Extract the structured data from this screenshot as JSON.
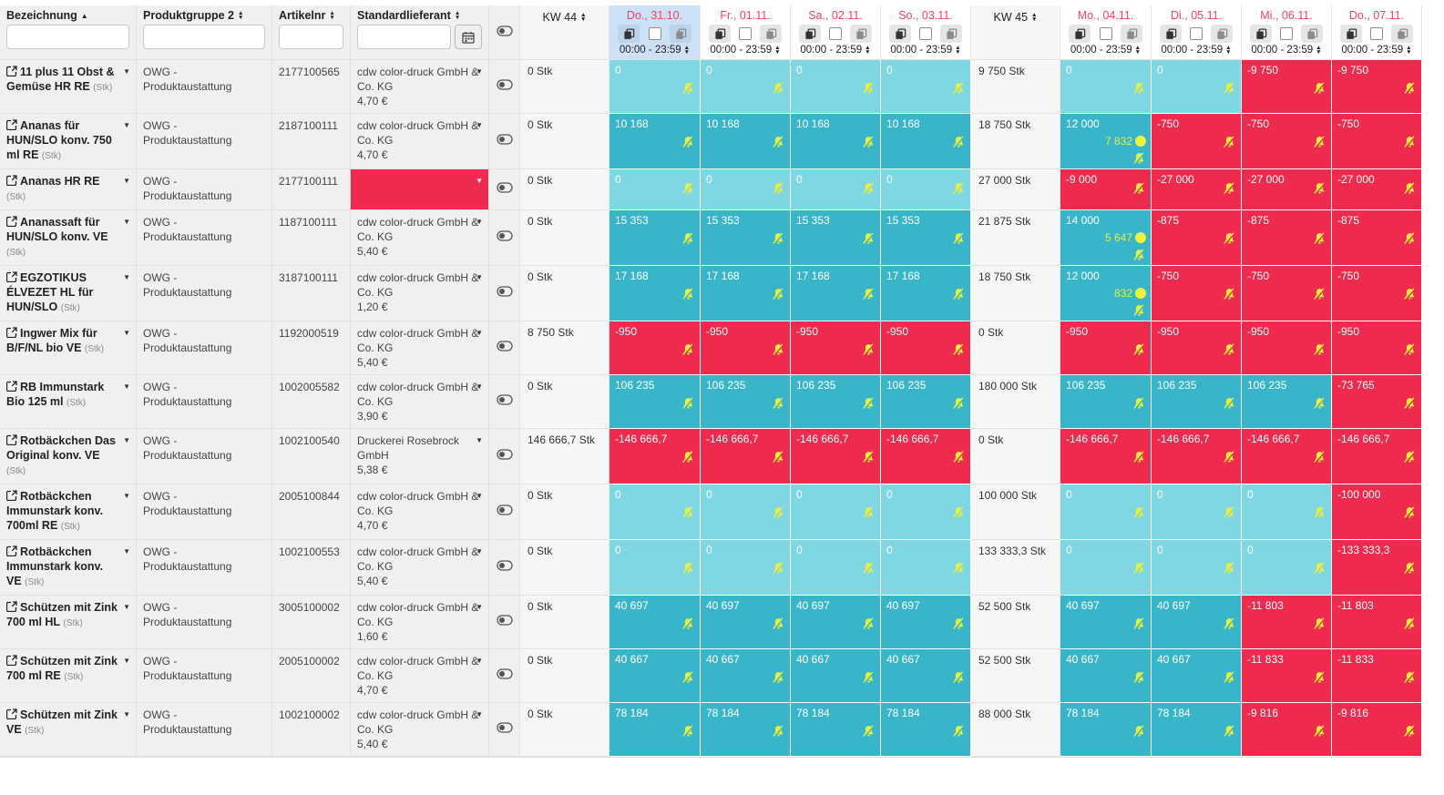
{
  "header": {
    "filters": [
      {
        "label": "Bezeichnung",
        "sort": "asc",
        "filter_value": "",
        "has_calendar": false
      },
      {
        "label": "Produktgruppe 2",
        "sort": "both",
        "filter_value": "",
        "has_calendar": false
      },
      {
        "label": "Artikelnr",
        "sort": "both",
        "filter_value": "",
        "has_calendar": false
      },
      {
        "label": "Standardlieferant",
        "sort": "both",
        "filter_value": "",
        "has_calendar": true
      }
    ],
    "weeks": [
      {
        "label": "KW 44"
      },
      {
        "label": "KW 45"
      }
    ],
    "days": [
      {
        "label": "Do., 31.10.",
        "time": "00:00 - 23:59",
        "highlighted": true
      },
      {
        "label": "Fr., 01.11.",
        "time": "00:00 - 23:59",
        "highlighted": false
      },
      {
        "label": "Sa., 02.11.",
        "time": "00:00 - 23:59",
        "highlighted": false
      },
      {
        "label": "So., 03.11.",
        "time": "00:00 - 23:59",
        "highlighted": false
      },
      {
        "label": "Mo., 04.11.",
        "time": "00:00 - 23:59",
        "highlighted": false
      },
      {
        "label": "Di., 05.11.",
        "time": "00:00 - 23:59",
        "highlighted": false
      },
      {
        "label": "Mi., 06.11.",
        "time": "00:00 - 23:59",
        "highlighted": false
      },
      {
        "label": "Do., 07.11.",
        "time": "00:00 - 23:59",
        "highlighted": false
      }
    ]
  },
  "rows": [
    {
      "name": "11 plus 11 Obst & Gemüse HR RE",
      "unit": "(Stk)",
      "group": "OWG - Produktaustattung",
      "article": "2177100565",
      "supplier": "cdw color-druck GmbH & Co. KG",
      "price": "4,70 €",
      "supplier_missing": false,
      "week1_stock": "0 Stk",
      "week2_stock": "9 750 Stk",
      "day_values": [
        {
          "value": "0",
          "state": "zero"
        },
        {
          "value": "0",
          "state": "zero"
        },
        {
          "value": "0",
          "state": "zero"
        },
        {
          "value": "0",
          "state": "zero"
        },
        {
          "value": "0",
          "state": "zero"
        },
        {
          "value": "0",
          "state": "zero"
        },
        {
          "value": "-9 750",
          "state": "neg"
        },
        {
          "value": "-9 750",
          "state": "neg"
        }
      ]
    },
    {
      "name": "Ananas für HUN/SLO konv. 750 ml RE",
      "unit": "(Stk)",
      "group": "OWG - Produktaustattung",
      "article": "2187100111",
      "supplier": "cdw color-druck GmbH & Co. KG",
      "price": "4,70 €",
      "supplier_missing": false,
      "week1_stock": "0 Stk",
      "week2_stock": "18 750 Stk",
      "day_values": [
        {
          "value": "10 168",
          "state": "pos"
        },
        {
          "value": "10 168",
          "state": "pos"
        },
        {
          "value": "10 168",
          "state": "pos"
        },
        {
          "value": "10 168",
          "state": "pos"
        },
        {
          "value": "12 000",
          "state": "pos",
          "extra": "7 832"
        },
        {
          "value": "-750",
          "state": "neg"
        },
        {
          "value": "-750",
          "state": "neg"
        },
        {
          "value": "-750",
          "state": "neg"
        }
      ]
    },
    {
      "name": "Ananas HR RE",
      "unit": "(Stk)",
      "compact": true,
      "group": "OWG - Produktaustattung",
      "article": "2177100111",
      "supplier": "",
      "price": "",
      "supplier_missing": true,
      "week1_stock": "0 Stk",
      "week2_stock": "27 000 Stk",
      "day_values": [
        {
          "value": "0",
          "state": "zero"
        },
        {
          "value": "0",
          "state": "zero"
        },
        {
          "value": "0",
          "state": "zero"
        },
        {
          "value": "0",
          "state": "zero"
        },
        {
          "value": "-9 000",
          "state": "neg"
        },
        {
          "value": "-27 000",
          "state": "neg"
        },
        {
          "value": "-27 000",
          "state": "neg"
        },
        {
          "value": "-27 000",
          "state": "neg"
        }
      ]
    },
    {
      "name": "Ananassaft für HUN/SLO konv. VE",
      "unit": "(Stk)",
      "group": "OWG - Produktaustattung",
      "article": "1187100111",
      "supplier": "cdw color-druck GmbH & Co. KG",
      "price": "5,40 €",
      "supplier_missing": false,
      "week1_stock": "0 Stk",
      "week2_stock": "21 875 Stk",
      "day_values": [
        {
          "value": "15 353",
          "state": "pos"
        },
        {
          "value": "15 353",
          "state": "pos"
        },
        {
          "value": "15 353",
          "state": "pos"
        },
        {
          "value": "15 353",
          "state": "pos"
        },
        {
          "value": "14 000",
          "state": "pos",
          "extra": "5 647"
        },
        {
          "value": "-875",
          "state": "neg"
        },
        {
          "value": "-875",
          "state": "neg"
        },
        {
          "value": "-875",
          "state": "neg"
        }
      ]
    },
    {
      "name": "EGZOTIKUS ÉLVEZET HL für HUN/SLO",
      "unit": "(Stk)",
      "group": "OWG - Produktaustattung",
      "article": "3187100111",
      "supplier": "cdw color-druck GmbH & Co. KG",
      "price": "1,20 €",
      "supplier_missing": false,
      "week1_stock": "0 Stk",
      "week2_stock": "18 750 Stk",
      "day_values": [
        {
          "value": "17 168",
          "state": "pos"
        },
        {
          "value": "17 168",
          "state": "pos"
        },
        {
          "value": "17 168",
          "state": "pos"
        },
        {
          "value": "17 168",
          "state": "pos"
        },
        {
          "value": "12 000",
          "state": "pos",
          "extra": "832"
        },
        {
          "value": "-750",
          "state": "neg"
        },
        {
          "value": "-750",
          "state": "neg"
        },
        {
          "value": "-750",
          "state": "neg"
        }
      ]
    },
    {
      "name": "Ingwer Mix für B/F/NL bio VE",
      "unit": "(Stk)",
      "group": "OWG - Produktaustattung",
      "article": "1192000519",
      "supplier": "cdw color-druck GmbH & Co. KG",
      "price": "5,40 €",
      "supplier_missing": false,
      "week1_stock": "8 750 Stk",
      "week2_stock": "0 Stk",
      "day_values": [
        {
          "value": "-950",
          "state": "neg"
        },
        {
          "value": "-950",
          "state": "neg"
        },
        {
          "value": "-950",
          "state": "neg"
        },
        {
          "value": "-950",
          "state": "neg"
        },
        {
          "value": "-950",
          "state": "neg"
        },
        {
          "value": "-950",
          "state": "neg"
        },
        {
          "value": "-950",
          "state": "neg"
        },
        {
          "value": "-950",
          "state": "neg"
        }
      ]
    },
    {
      "name": "RB Immunstark Bio 125 ml",
      "unit": "(Stk)",
      "group": "OWG - Produktaustattung",
      "article": "1002005582",
      "supplier": "cdw color-druck GmbH & Co. KG",
      "price": "3,90 €",
      "supplier_missing": false,
      "week1_stock": "0 Stk",
      "week2_stock": "180 000 Stk",
      "day_values": [
        {
          "value": "106 235",
          "state": "pos"
        },
        {
          "value": "106 235",
          "state": "pos"
        },
        {
          "value": "106 235",
          "state": "pos"
        },
        {
          "value": "106 235",
          "state": "pos"
        },
        {
          "value": "106 235",
          "state": "pos"
        },
        {
          "value": "106 235",
          "state": "pos"
        },
        {
          "value": "106 235",
          "state": "pos"
        },
        {
          "value": "-73 765",
          "state": "neg"
        }
      ]
    },
    {
      "name": "Rotbäckchen Das Original konv. VE",
      "unit": "(Stk)",
      "group": "OWG - Produktaustattung",
      "article": "1002100540",
      "supplier": "Druckerei Rosebrock GmbH",
      "price": "5,38 €",
      "supplier_missing": false,
      "week1_stock": "146 666,7 Stk",
      "week2_stock": "0 Stk",
      "day_values": [
        {
          "value": "-146 666,7",
          "state": "neg"
        },
        {
          "value": "-146 666,7",
          "state": "neg"
        },
        {
          "value": "-146 666,7",
          "state": "neg"
        },
        {
          "value": "-146 666,7",
          "state": "neg"
        },
        {
          "value": "-146 666,7",
          "state": "neg"
        },
        {
          "value": "-146 666,7",
          "state": "neg"
        },
        {
          "value": "-146 666,7",
          "state": "neg"
        },
        {
          "value": "-146 666,7",
          "state": "neg"
        }
      ]
    },
    {
      "name": "Rotbäckchen Immunstark konv. 700ml RE",
      "unit": "(Stk)",
      "group": "OWG - Produktaustattung",
      "article": "2005100844",
      "supplier": "cdw color-druck GmbH & Co. KG",
      "price": "4,70 €",
      "supplier_missing": false,
      "week1_stock": "0 Stk",
      "week2_stock": "100 000 Stk",
      "day_values": [
        {
          "value": "0",
          "state": "zero"
        },
        {
          "value": "0",
          "state": "zero"
        },
        {
          "value": "0",
          "state": "zero"
        },
        {
          "value": "0",
          "state": "zero"
        },
        {
          "value": "0",
          "state": "zero"
        },
        {
          "value": "0",
          "state": "zero"
        },
        {
          "value": "0",
          "state": "zero"
        },
        {
          "value": "-100 000",
          "state": "neg"
        }
      ]
    },
    {
      "name": "Rotbäckchen Immunstark konv. VE",
      "unit": "(Stk)",
      "group": "OWG - Produktaustattung",
      "article": "1002100553",
      "supplier": "cdw color-druck GmbH & Co. KG",
      "price": "5,40 €",
      "supplier_missing": false,
      "week1_stock": "0 Stk",
      "week2_stock": "133 333,3 Stk",
      "day_values": [
        {
          "value": "0",
          "state": "zero"
        },
        {
          "value": "0",
          "state": "zero"
        },
        {
          "value": "0",
          "state": "zero"
        },
        {
          "value": "0",
          "state": "zero"
        },
        {
          "value": "0",
          "state": "zero"
        },
        {
          "value": "0",
          "state": "zero"
        },
        {
          "value": "0",
          "state": "zero"
        },
        {
          "value": "-133 333,3",
          "state": "neg"
        }
      ]
    },
    {
      "name": "Schützen mit Zink 700 ml HL",
      "unit": "(Stk)",
      "group": "OWG - Produktaustattung",
      "article": "3005100002",
      "supplier": "cdw color-druck GmbH & Co. KG",
      "price": "1,60 €",
      "supplier_missing": false,
      "week1_stock": "0 Stk",
      "week2_stock": "52 500 Stk",
      "day_values": [
        {
          "value": "40 697",
          "state": "pos"
        },
        {
          "value": "40 697",
          "state": "pos"
        },
        {
          "value": "40 697",
          "state": "pos"
        },
        {
          "value": "40 697",
          "state": "pos"
        },
        {
          "value": "40 697",
          "state": "pos"
        },
        {
          "value": "40 697",
          "state": "pos"
        },
        {
          "value": "-11 803",
          "state": "neg"
        },
        {
          "value": "-11 803",
          "state": "neg"
        }
      ]
    },
    {
      "name": "Schützen mit Zink 700 ml RE",
      "unit": "(Stk)",
      "group": "OWG - Produktaustattung",
      "article": "2005100002",
      "supplier": "cdw color-druck GmbH & Co. KG",
      "price": "4,70 €",
      "supplier_missing": false,
      "week1_stock": "0 Stk",
      "week2_stock": "52 500 Stk",
      "day_values": [
        {
          "value": "40 667",
          "state": "pos"
        },
        {
          "value": "40 667",
          "state": "pos"
        },
        {
          "value": "40 667",
          "state": "pos"
        },
        {
          "value": "40 667",
          "state": "pos"
        },
        {
          "value": "40 667",
          "state": "pos"
        },
        {
          "value": "40 667",
          "state": "pos"
        },
        {
          "value": "-11 833",
          "state": "neg"
        },
        {
          "value": "-11 833",
          "state": "neg"
        }
      ]
    },
    {
      "name": "Schützen mit Zink VE",
      "unit": "(Stk)",
      "group": "OWG - Produktaustattung",
      "article": "1002100002",
      "supplier": "cdw color-druck GmbH & Co. KG",
      "price": "5,40 €",
      "supplier_missing": false,
      "week1_stock": "0 Stk",
      "week2_stock": "88 000 Stk",
      "day_values": [
        {
          "value": "78 184",
          "state": "pos"
        },
        {
          "value": "78 184",
          "state": "pos"
        },
        {
          "value": "78 184",
          "state": "pos"
        },
        {
          "value": "78 184",
          "state": "pos"
        },
        {
          "value": "78 184",
          "state": "pos"
        },
        {
          "value": "78 184",
          "state": "pos"
        },
        {
          "value": "-9 816",
          "state": "neg"
        },
        {
          "value": "-9 816",
          "state": "neg"
        }
      ]
    }
  ],
  "colors": {
    "positive": "#39b5ca",
    "zero": "#7ed7e2",
    "negative": "#ee2b4e",
    "date_text": "#f43f5e",
    "today_header_bg": "#cde1f6",
    "alert_icon": "#e9ef3a"
  }
}
